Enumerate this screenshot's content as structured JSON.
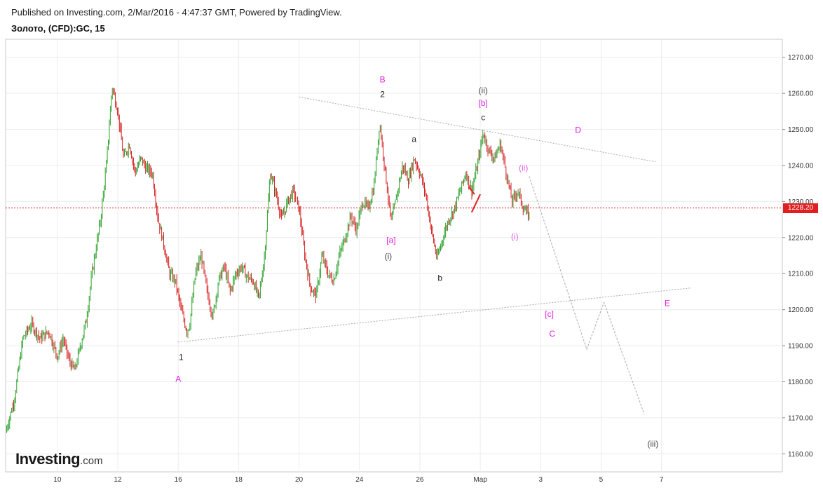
{
  "header": {
    "published": "Published on Investing.com, 2/Mar/2016 - 4:47:37 GMT, Powered by TradingView.",
    "symbol": "Золото, (CFD):GC, 15"
  },
  "logo": {
    "text": "Investing",
    "suffix": ".com"
  },
  "chart_data": {
    "type": "candlestick",
    "instrument": "Золото, (CFD):GC, 15",
    "ylim": [
      1155,
      1275
    ],
    "y_ticks": [
      1160,
      1170,
      1180,
      1190,
      1200,
      1210,
      1220,
      1230,
      1240,
      1250,
      1260,
      1270
    ],
    "y_tick_labels": [
      "1160.00",
      "1170.00",
      "1180.00",
      "1190.00",
      "1200.00",
      "1210.00",
      "1220.00",
      "1230.00",
      "1240.00",
      "1250.00",
      "1260.00",
      "1270.00"
    ],
    "x_ticks": [
      "10",
      "12",
      "16",
      "18",
      "20",
      "24",
      "26",
      "Мар",
      "3",
      "5",
      "7"
    ],
    "last_price": 1228.2,
    "last_price_label": "1228.20",
    "price_colors": {
      "up": "#2aa02a",
      "down": "#d62020",
      "last_price_line": "#d62020"
    },
    "price_path": [
      [
        0,
        1166
      ],
      [
        3,
        1175
      ],
      [
        6,
        1192
      ],
      [
        9,
        1196
      ],
      [
        12,
        1192
      ],
      [
        15,
        1194
      ],
      [
        18,
        1187
      ],
      [
        20,
        1192
      ],
      [
        22,
        1186
      ],
      [
        24,
        1183
      ],
      [
        26,
        1190
      ],
      [
        28,
        1197
      ],
      [
        30,
        1210
      ],
      [
        33,
        1225
      ],
      [
        35,
        1240
      ],
      [
        37,
        1262
      ],
      [
        39,
        1255
      ],
      [
        41,
        1242
      ],
      [
        43,
        1246
      ],
      [
        45,
        1238
      ],
      [
        47,
        1242
      ],
      [
        49,
        1239
      ],
      [
        51,
        1238
      ],
      [
        53,
        1225
      ],
      [
        55,
        1218
      ],
      [
        57,
        1210
      ],
      [
        59,
        1208
      ],
      [
        61,
        1200
      ],
      [
        63,
        1194
      ],
      [
        64,
        1196
      ],
      [
        66,
        1210
      ],
      [
        68,
        1215
      ],
      [
        70,
        1205
      ],
      [
        72,
        1198
      ],
      [
        74,
        1208
      ],
      [
        76,
        1212
      ],
      [
        78,
        1205
      ],
      [
        80,
        1210
      ],
      [
        82,
        1212
      ],
      [
        84,
        1209
      ],
      [
        86,
        1208
      ],
      [
        88,
        1203
      ],
      [
        90,
        1215
      ],
      [
        92,
        1238
      ],
      [
        94,
        1232
      ],
      [
        96,
        1225
      ],
      [
        98,
        1230
      ],
      [
        100,
        1233
      ],
      [
        102,
        1228
      ],
      [
        104,
        1215
      ],
      [
        106,
        1206
      ],
      [
        108,
        1204
      ],
      [
        110,
        1215
      ],
      [
        112,
        1210
      ],
      [
        114,
        1208
      ],
      [
        116,
        1215
      ],
      [
        118,
        1220
      ],
      [
        120,
        1226
      ],
      [
        122,
        1222
      ],
      [
        124,
        1230
      ],
      [
        126,
        1228
      ],
      [
        128,
        1234
      ],
      [
        130,
        1252
      ],
      [
        132,
        1238
      ],
      [
        134,
        1224
      ],
      [
        136,
        1232
      ],
      [
        138,
        1240
      ],
      [
        140,
        1236
      ],
      [
        142,
        1242
      ],
      [
        144,
        1238
      ],
      [
        146,
        1232
      ],
      [
        148,
        1222
      ],
      [
        150,
        1214
      ],
      [
        152,
        1220
      ],
      [
        154,
        1225
      ],
      [
        156,
        1228
      ],
      [
        158,
        1233
      ],
      [
        160,
        1238
      ],
      [
        162,
        1233
      ],
      [
        164,
        1240
      ],
      [
        166,
        1249
      ],
      [
        168,
        1244
      ],
      [
        170,
        1242
      ],
      [
        172,
        1246
      ],
      [
        174,
        1238
      ],
      [
        176,
        1230
      ],
      [
        178,
        1233
      ],
      [
        180,
        1228
      ],
      [
        182,
        1226
      ]
    ],
    "x_range": [
      0,
      270
    ],
    "x_tick_positions": [
      18,
      39,
      60,
      81,
      102,
      123,
      144,
      165,
      186,
      207,
      228
    ],
    "trendlines": [
      {
        "name": "upper-trendline",
        "from": [
          102,
          1259
        ],
        "to": [
          226,
          1241
        ]
      },
      {
        "name": "lower-trendline",
        "from": [
          60,
          1191
        ],
        "to": [
          238,
          1206
        ]
      }
    ],
    "projection_path": [
      [
        182,
        1237
      ],
      [
        202,
        1189
      ],
      [
        208,
        1202
      ],
      [
        222,
        1171
      ]
    ],
    "red_marks": [
      {
        "from": [
          161,
          1234
        ],
        "to": [
          163,
          1232
        ]
      },
      {
        "from": [
          162,
          1227
        ],
        "to": [
          165,
          1232
        ]
      }
    ],
    "annotations": [
      {
        "text": "B",
        "x": 131,
        "y": 1263,
        "color": "#e020e0"
      },
      {
        "text": "2",
        "x": 131,
        "y": 1259,
        "color": "#222222"
      },
      {
        "text": "(ii)",
        "x": 166,
        "y": 1260,
        "color": "#444444"
      },
      {
        "text": "[b]",
        "x": 166,
        "y": 1256.5,
        "color": "#e020e0"
      },
      {
        "text": "c",
        "x": 166,
        "y": 1252.5,
        "color": "#222222"
      },
      {
        "text": "a",
        "x": 142,
        "y": 1246.5,
        "color": "#222222"
      },
      {
        "text": "D",
        "x": 199,
        "y": 1249,
        "color": "#e020e0"
      },
      {
        "text": "(ii)",
        "x": 180,
        "y": 1238.5,
        "color": "#e060e0"
      },
      {
        "text": "[a]",
        "x": 134,
        "y": 1218.5,
        "color": "#e020e0"
      },
      {
        "text": "(i)",
        "x": 133,
        "y": 1214,
        "color": "#444444"
      },
      {
        "text": "(i)",
        "x": 177,
        "y": 1219.5,
        "color": "#e060e0"
      },
      {
        "text": "b",
        "x": 151,
        "y": 1208,
        "color": "#222222"
      },
      {
        "text": "E",
        "x": 230,
        "y": 1201,
        "color": "#e020e0"
      },
      {
        "text": "[c]",
        "x": 189,
        "y": 1198,
        "color": "#e020e0"
      },
      {
        "text": "C",
        "x": 190,
        "y": 1192.5,
        "color": "#e020e0"
      },
      {
        "text": "1",
        "x": 61,
        "y": 1186,
        "color": "#222222"
      },
      {
        "text": "A",
        "x": 60,
        "y": 1180,
        "color": "#e020e0"
      },
      {
        "text": "(iii)",
        "x": 225,
        "y": 1162,
        "color": "#444444"
      }
    ]
  }
}
